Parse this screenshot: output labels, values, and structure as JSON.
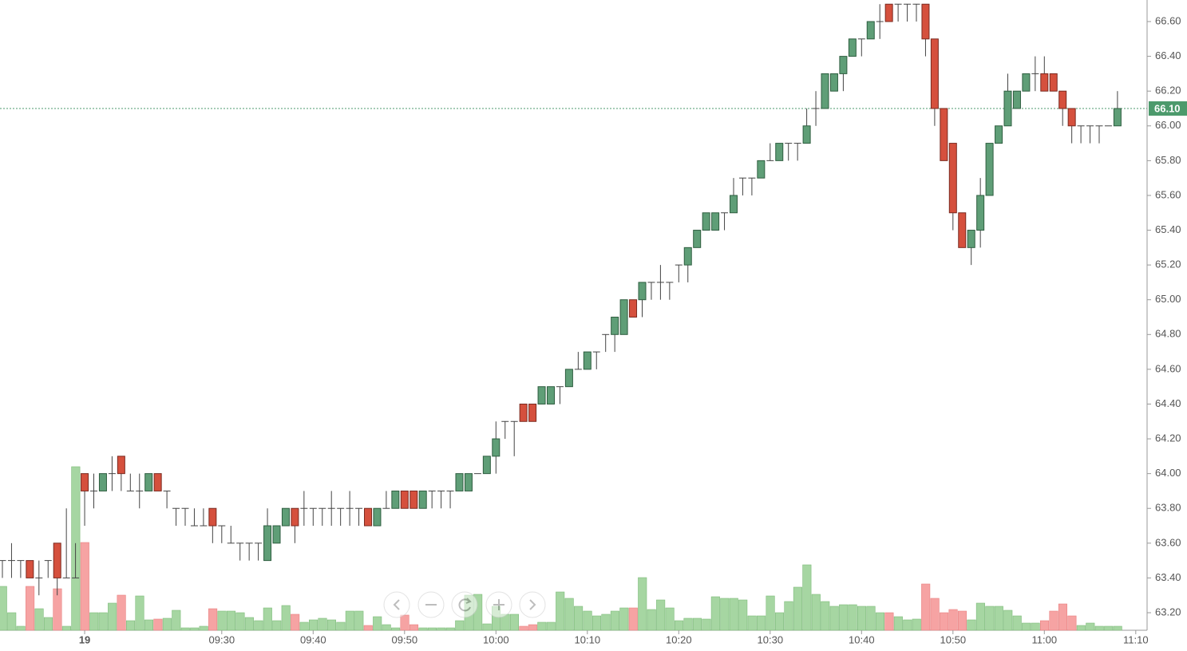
{
  "chart_data": {
    "type": "candlestick",
    "categories": [
      null,
      null,
      null,
      null,
      null,
      null,
      null,
      null,
      null,
      "19",
      null,
      null,
      null,
      null,
      null,
      null,
      null,
      null,
      null,
      null,
      null,
      null,
      null,
      null,
      "09:30",
      null,
      null,
      null,
      null,
      null,
      null,
      null,
      null,
      null,
      "09:40",
      null,
      null,
      null,
      null,
      null,
      null,
      null,
      null,
      null,
      "09:50",
      null,
      null,
      null,
      null,
      null,
      null,
      null,
      null,
      null,
      "10:00",
      null,
      null,
      null,
      null,
      null,
      null,
      null,
      null,
      null,
      "10:10",
      null,
      null,
      null,
      null,
      null,
      null,
      null,
      null,
      null,
      "10:20",
      null,
      null,
      null,
      null,
      null,
      null,
      null,
      null,
      null,
      "10:30",
      null,
      null,
      null,
      null,
      null,
      null,
      null,
      null,
      null,
      "10:40",
      null,
      null,
      null,
      null,
      null,
      null,
      null,
      null,
      null,
      "10:50",
      null,
      null,
      null,
      null,
      null,
      null,
      null,
      null,
      null,
      "11:00",
      null,
      null,
      null,
      null,
      null,
      null,
      null,
      null,
      null,
      "11:10"
    ],
    "open": [
      63.5,
      63.5,
      63.5,
      63.5,
      63.4,
      63.5,
      63.6,
      63.4,
      63.4,
      64.0,
      63.9,
      63.9,
      64.0,
      64.1,
      63.9,
      63.9,
      63.9,
      64.0,
      63.9,
      63.8,
      63.8,
      63.7,
      63.7,
      63.8,
      63.7,
      63.6,
      63.6,
      63.6,
      63.6,
      63.5,
      63.6,
      63.7,
      63.8,
      63.8,
      63.8,
      63.8,
      63.8,
      63.8,
      63.8,
      63.8,
      63.8,
      63.7,
      63.8,
      63.8,
      63.9,
      63.9,
      63.8,
      63.9,
      63.9,
      63.9,
      63.9,
      63.9,
      64.0,
      64.0,
      64.1,
      64.3,
      64.3,
      64.4,
      64.4,
      64.4,
      64.4,
      64.5,
      64.5,
      64.6,
      64.6,
      64.7,
      64.8,
      64.8,
      64.8,
      65.0,
      65.0,
      65.1,
      65.1,
      65.1,
      65.2,
      65.2,
      65.3,
      65.4,
      65.4,
      65.5,
      65.5,
      65.7,
      65.7,
      65.7,
      65.8,
      65.8,
      65.9,
      65.9,
      65.9,
      66.1,
      66.1,
      66.2,
      66.3,
      66.4,
      66.5,
      66.5,
      66.6,
      66.7,
      66.7,
      66.7,
      66.7,
      66.7,
      66.5,
      66.1,
      65.9,
      65.5,
      65.3,
      65.4,
      65.6,
      65.9,
      66.0,
      66.1,
      66.2,
      66.3,
      66.3,
      66.3,
      66.2,
      66.1,
      66.0,
      66.0,
      66.0,
      66.0,
      66.0,
      null,
      null
    ],
    "high": [
      63.5,
      63.6,
      63.5,
      63.5,
      63.5,
      63.5,
      63.6,
      63.8,
      63.6,
      64.0,
      64.0,
      64.0,
      64.1,
      64.1,
      64.0,
      64.0,
      64.0,
      64.0,
      63.9,
      63.8,
      63.8,
      63.8,
      63.8,
      63.8,
      63.7,
      63.7,
      63.6,
      63.6,
      63.6,
      63.8,
      63.7,
      63.8,
      63.8,
      63.9,
      63.8,
      63.8,
      63.9,
      63.8,
      63.9,
      63.8,
      63.8,
      63.8,
      63.9,
      63.9,
      63.9,
      63.9,
      63.9,
      63.9,
      63.9,
      63.9,
      64.0,
      64.0,
      64.0,
      64.1,
      64.3,
      64.3,
      64.3,
      64.4,
      64.4,
      64.5,
      64.5,
      64.5,
      64.6,
      64.7,
      64.7,
      64.7,
      64.8,
      64.9,
      65.0,
      65.0,
      65.1,
      65.1,
      65.2,
      65.1,
      65.2,
      65.3,
      65.4,
      65.5,
      65.5,
      65.5,
      65.7,
      65.7,
      65.7,
      65.8,
      65.9,
      65.9,
      65.9,
      65.9,
      66.1,
      66.2,
      66.3,
      66.3,
      66.4,
      66.5,
      66.5,
      66.6,
      66.7,
      66.7,
      66.7,
      66.7,
      66.7,
      66.7,
      66.5,
      66.1,
      65.9,
      65.5,
      65.4,
      65.7,
      65.9,
      66.0,
      66.3,
      66.2,
      66.3,
      66.4,
      66.4,
      66.3,
      66.2,
      66.1,
      66.0,
      66.0,
      66.0,
      66.0,
      66.2,
      null,
      null
    ],
    "low": [
      63.4,
      63.4,
      63.4,
      63.4,
      63.3,
      63.4,
      63.3,
      63.4,
      63.4,
      63.7,
      63.8,
      63.9,
      63.9,
      63.9,
      63.9,
      63.8,
      63.9,
      63.9,
      63.8,
      63.7,
      63.7,
      63.7,
      63.7,
      63.6,
      63.6,
      63.6,
      63.5,
      63.5,
      63.5,
      63.5,
      63.6,
      63.7,
      63.6,
      63.7,
      63.7,
      63.7,
      63.7,
      63.7,
      63.7,
      63.7,
      63.7,
      63.7,
      63.8,
      63.8,
      63.8,
      63.8,
      63.8,
      63.8,
      63.8,
      63.8,
      63.9,
      63.9,
      64.0,
      64.0,
      64.0,
      64.2,
      64.1,
      64.3,
      64.3,
      64.4,
      64.4,
      64.4,
      64.5,
      64.6,
      64.6,
      64.6,
      64.7,
      64.7,
      64.8,
      64.9,
      64.9,
      65.0,
      65.0,
      65.0,
      65.1,
      65.1,
      65.3,
      65.4,
      65.4,
      65.4,
      65.5,
      65.6,
      65.6,
      65.7,
      65.8,
      65.8,
      65.8,
      65.8,
      65.9,
      66.0,
      66.1,
      66.2,
      66.2,
      66.4,
      66.4,
      66.5,
      66.5,
      66.6,
      66.6,
      66.6,
      66.6,
      66.4,
      66.0,
      65.8,
      65.4,
      65.3,
      65.2,
      65.3,
      65.6,
      65.9,
      66.0,
      66.1,
      66.2,
      66.2,
      66.2,
      66.2,
      66.0,
      65.9,
      65.9,
      65.9,
      65.9,
      66.0,
      66.0,
      null,
      null
    ],
    "close": [
      63.5,
      63.5,
      63.5,
      63.4,
      63.4,
      63.5,
      63.4,
      63.4,
      63.4,
      63.9,
      63.9,
      64.0,
      64.0,
      64.0,
      63.9,
      63.9,
      64.0,
      63.9,
      63.9,
      63.8,
      63.8,
      63.7,
      63.7,
      63.7,
      63.7,
      63.6,
      63.6,
      63.6,
      63.6,
      63.7,
      63.7,
      63.8,
      63.7,
      63.8,
      63.8,
      63.8,
      63.8,
      63.8,
      63.8,
      63.8,
      63.7,
      63.8,
      63.8,
      63.9,
      63.8,
      63.8,
      63.9,
      63.9,
      63.9,
      63.9,
      64.0,
      64.0,
      64.0,
      64.1,
      64.2,
      64.3,
      64.3,
      64.3,
      64.3,
      64.5,
      64.5,
      64.5,
      64.6,
      64.6,
      64.7,
      64.7,
      64.8,
      64.9,
      65.0,
      64.9,
      65.1,
      65.1,
      65.1,
      65.1,
      65.2,
      65.3,
      65.4,
      65.5,
      65.5,
      65.5,
      65.6,
      65.7,
      65.7,
      65.8,
      65.8,
      65.9,
      65.9,
      65.9,
      66.0,
      66.1,
      66.3,
      66.3,
      66.4,
      66.5,
      66.5,
      66.6,
      66.6,
      66.6,
      66.7,
      66.7,
      66.7,
      66.5,
      66.1,
      65.8,
      65.5,
      65.3,
      65.4,
      65.6,
      65.9,
      66.0,
      66.2,
      66.2,
      66.3,
      66.3,
      66.2,
      66.2,
      66.1,
      66.0,
      66.0,
      66.0,
      66.0,
      66.0,
      66.1,
      null,
      null
    ],
    "volume": [
      55,
      22,
      5,
      55,
      27,
      16,
      52,
      5,
      205,
      110,
      22,
      22,
      34,
      44,
      12,
      43,
      13,
      14,
      15,
      25,
      3,
      3,
      5,
      27,
      24,
      24,
      22,
      16,
      12,
      28,
      12,
      31,
      20,
      10,
      13,
      15,
      13,
      10,
      24,
      24,
      6,
      17,
      7,
      3,
      19,
      7,
      3,
      3,
      3,
      3,
      12,
      44,
      45,
      8,
      30,
      20,
      20,
      5,
      7,
      10,
      10,
      48,
      40,
      30,
      24,
      18,
      20,
      24,
      28,
      28,
      66,
      26,
      38,
      28,
      12,
      15,
      15,
      14,
      42,
      40,
      40,
      38,
      18,
      18,
      43,
      22,
      36,
      54,
      82,
      45,
      36,
      30,
      32,
      32,
      30,
      30,
      22,
      22,
      17,
      13,
      14,
      58,
      40,
      22,
      26,
      24,
      13,
      34,
      30,
      30,
      25,
      18,
      9,
      9,
      12,
      24,
      33,
      18,
      6,
      9,
      5,
      5,
      5,
      null,
      null
    ],
    "ylim": [
      63.099,
      66.724
    ],
    "yticks": [
      {
        "value": 63.2,
        "label": "63.20"
      },
      {
        "value": 63.4,
        "label": "63.40"
      },
      {
        "value": 63.6,
        "label": "63.60"
      },
      {
        "value": 63.8,
        "label": "63.80"
      },
      {
        "value": 64.0,
        "label": "64.00"
      },
      {
        "value": 64.2,
        "label": "64.20"
      },
      {
        "value": 64.4,
        "label": "64.40"
      },
      {
        "value": 64.6,
        "label": "64.60"
      },
      {
        "value": 64.8,
        "label": "64.80"
      },
      {
        "value": 65.0,
        "label": "65.00"
      },
      {
        "value": 65.2,
        "label": "65.20"
      },
      {
        "value": 65.4,
        "label": "65.40"
      },
      {
        "value": 65.6,
        "label": "65.60"
      },
      {
        "value": 65.8,
        "label": "65.80"
      },
      {
        "value": 66.0,
        "label": "66.00"
      },
      {
        "value": 66.2,
        "label": "66.20"
      },
      {
        "value": 66.4,
        "label": "66.40"
      },
      {
        "value": 66.6,
        "label": "66.60"
      }
    ],
    "y2lim": [
      0,
      790
    ],
    "last_price": {
      "value": 66.1,
      "label": "66.10"
    },
    "last_price_color": "#4c9a6c",
    "up_color": "#5f9e77",
    "down_color": "#d5503d",
    "volume_up_color": "#a6d6a2",
    "volume_down_color": "#f6a3a3"
  }
}
